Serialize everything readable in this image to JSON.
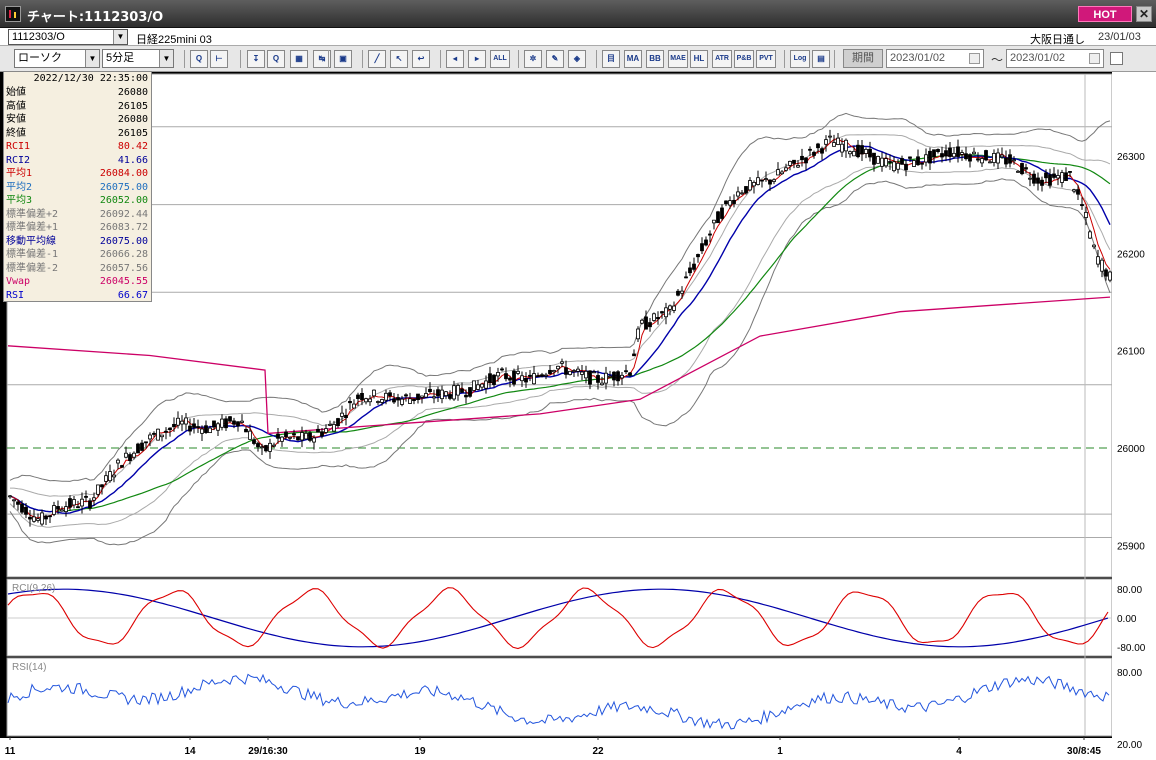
{
  "window": {
    "title": "チャート:1112303/O",
    "hot_label": "HOT",
    "close_label": "✕"
  },
  "info": {
    "symbol_code": "1112303/O",
    "symbol_name": "日経225mini 03",
    "market": "大阪日通し",
    "date": "23/01/03"
  },
  "toolbar": {
    "chart_type": "ローソク",
    "timeframe": "5分足",
    "buttons": [
      {
        "name": "zoom-button",
        "label": "Q"
      },
      {
        "name": "cursor-button",
        "label": "⊢"
      },
      {
        "name": "compare-button",
        "label": "↧"
      },
      {
        "name": "search-chart-button",
        "label": "Q"
      },
      {
        "name": "chart-add-button",
        "label": "▦"
      },
      {
        "name": "order-button",
        "label": "↹"
      },
      {
        "name": "disabled-button",
        "label": "▣"
      },
      {
        "name": "draw-line-button",
        "label": "╱"
      },
      {
        "name": "select-arrow-button",
        "label": "↖"
      },
      {
        "name": "undo-button",
        "label": "↩"
      },
      {
        "name": "candle-left-button",
        "label": "◂"
      },
      {
        "name": "candle-right-button",
        "label": "▸"
      },
      {
        "name": "all-button",
        "label": "ALL"
      },
      {
        "name": "settings-button",
        "label": "✲"
      },
      {
        "name": "tool-button",
        "label": "✎"
      },
      {
        "name": "color-button",
        "label": "◈"
      },
      {
        "name": "volume-button",
        "label": "目"
      },
      {
        "name": "ma-button",
        "label": "MA"
      },
      {
        "name": "bb-button",
        "label": "BB"
      },
      {
        "name": "mae-button",
        "label": "MAE"
      },
      {
        "name": "hl-button",
        "label": "HL"
      },
      {
        "name": "atr-button",
        "label": "ATR"
      },
      {
        "name": "pb-button",
        "label": "P&B"
      },
      {
        "name": "pvt-button",
        "label": "PVT"
      },
      {
        "name": "log-button",
        "label": "Log"
      },
      {
        "name": "export-button",
        "label": "▤"
      }
    ],
    "period_label": "期間",
    "date_from": "2023/01/02",
    "date_to": "2023/01/02",
    "tilde": "〜"
  },
  "data_panel": {
    "time": "2022/12/30  22:35:00",
    "rows": [
      {
        "label": "始値",
        "value": "26080",
        "color": "#000000"
      },
      {
        "label": "高値",
        "value": "26105",
        "color": "#000000"
      },
      {
        "label": "安値",
        "value": "26080",
        "color": "#000000"
      },
      {
        "label": "終値",
        "value": "26105",
        "color": "#000000"
      },
      {
        "label": "RCI1",
        "value": "80.42",
        "color": "#cc0000"
      },
      {
        "label": "RCI2",
        "value": "41.66",
        "color": "#000099"
      },
      {
        "label": "平均1",
        "value": "26084.00",
        "color": "#cc0000"
      },
      {
        "label": "平均2",
        "value": "26075.00",
        "color": "#1f6fbf"
      },
      {
        "label": "平均3",
        "value": "26052.00",
        "color": "#118811"
      },
      {
        "label": "標準偏差+2",
        "value": "26092.44",
        "color": "#777777"
      },
      {
        "label": "標準偏差+1",
        "value": "26083.72",
        "color": "#777777"
      },
      {
        "label": "移動平均線",
        "value": "26075.00",
        "color": "#000099"
      },
      {
        "label": "標準偏差-1",
        "value": "26066.28",
        "color": "#777777"
      },
      {
        "label": "標準偏差-2",
        "value": "26057.56",
        "color": "#777777"
      },
      {
        "label": "Vwap",
        "value": "26045.55",
        "color": "#cc0066"
      },
      {
        "label": "RSI",
        "value": "66.67",
        "color": "#0000cc"
      }
    ]
  },
  "chart_data": [
    {
      "type": "candlestick",
      "title": "",
      "y_ticks": [
        "26300",
        "26200",
        "26100",
        "26000",
        "25900"
      ],
      "y_values": [
        26300,
        26200,
        26100,
        26000,
        25900
      ],
      "x_ticks": [
        "11",
        "14",
        "29/16:30",
        "19",
        "22",
        "1",
        "4",
        "30/8:45"
      ],
      "dashed_level": 26000,
      "series": [
        {
          "name": "平均1",
          "color": "#cc0000"
        },
        {
          "name": "平均2",
          "color": "#0000aa"
        },
        {
          "name": "平均3",
          "color": "#118811"
        },
        {
          "name": "Vwap",
          "color": "#cc0066"
        }
      ]
    },
    {
      "type": "line",
      "label": "RCI(9,26)",
      "y_ticks": [
        "80.00",
        "0.00",
        "-80.00"
      ],
      "series": [
        {
          "name": "RCI1",
          "color": "#dd0000"
        },
        {
          "name": "RCI2",
          "color": "#0000aa"
        }
      ]
    },
    {
      "type": "line",
      "label": "RSI(14)",
      "y_ticks": [
        "80.00",
        "20.00"
      ],
      "series": [
        {
          "name": "RSI",
          "color": "#2255dd"
        }
      ]
    }
  ]
}
